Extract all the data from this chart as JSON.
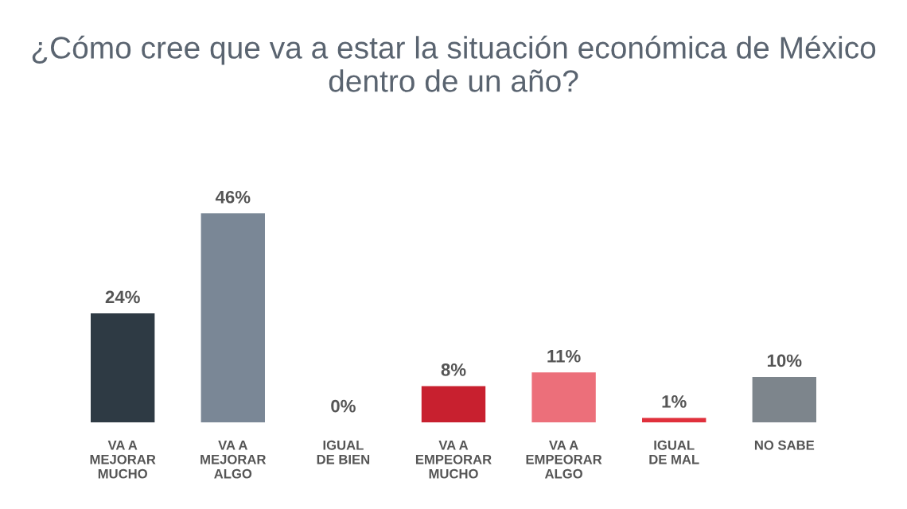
{
  "chart_data": {
    "type": "bar",
    "title": "¿Cómo cree que va a estar la situación económica de México dentro de un año?",
    "categories": [
      "VA A\nMEJORAR\nMUCHO",
      "VA A\nMEJORAR\nALGO",
      "IGUAL\nDE BIEN",
      "VA A\nEMPEORAR\nMUCHO",
      "VA A\nEMPEORAR\nALGO",
      "IGUAL\nDE MAL",
      "NO SABE"
    ],
    "values": [
      24,
      46,
      0,
      8,
      11,
      1,
      10
    ],
    "colors": [
      "#2e3a44",
      "#7a8796",
      "#9fd6dc",
      "#c8202f",
      "#ec6f7a",
      "#e0303c",
      "#7d858c"
    ],
    "value_labels": [
      "24%",
      "46%",
      "0%",
      "8%",
      "11%",
      "1%",
      "10%"
    ],
    "grid": false,
    "legend": false
  }
}
